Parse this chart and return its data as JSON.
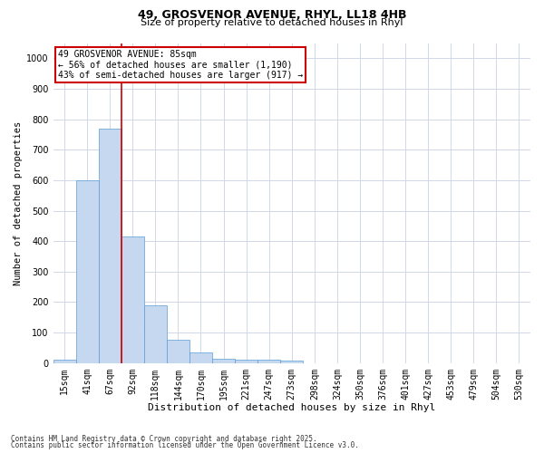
{
  "title_line1": "49, GROSVENOR AVENUE, RHYL, LL18 4HB",
  "title_line2": "Size of property relative to detached houses in Rhyl",
  "xlabel": "Distribution of detached houses by size in Rhyl",
  "ylabel": "Number of detached properties",
  "categories": [
    "15sqm",
    "41sqm",
    "67sqm",
    "92sqm",
    "118sqm",
    "144sqm",
    "170sqm",
    "195sqm",
    "221sqm",
    "247sqm",
    "273sqm",
    "298sqm",
    "324sqm",
    "350sqm",
    "376sqm",
    "401sqm",
    "427sqm",
    "453sqm",
    "479sqm",
    "504sqm",
    "530sqm"
  ],
  "values": [
    10,
    600,
    770,
    415,
    190,
    75,
    35,
    15,
    10,
    12,
    7,
    0,
    0,
    0,
    0,
    0,
    0,
    0,
    0,
    0,
    0
  ],
  "bar_color": "#c5d8f0",
  "bar_edge_color": "#5b9bd5",
  "grid_color": "#d0d8e8",
  "background_color": "#ffffff",
  "annotation_text": "49 GROSVENOR AVENUE: 85sqm\n← 56% of detached houses are smaller (1,190)\n43% of semi-detached houses are larger (917) →",
  "annotation_box_color": "#ffffff",
  "annotation_box_edge": "#cc0000",
  "vline_color": "#cc0000",
  "vline_x": 2.5,
  "ylim": [
    0,
    1050
  ],
  "yticks": [
    0,
    100,
    200,
    300,
    400,
    500,
    600,
    700,
    800,
    900,
    1000
  ],
  "footnote1": "Contains HM Land Registry data © Crown copyright and database right 2025.",
  "footnote2": "Contains public sector information licensed under the Open Government Licence v3.0.",
  "title_fontsize": 9,
  "subtitle_fontsize": 8,
  "tick_fontsize": 7,
  "ylabel_fontsize": 7.5,
  "xlabel_fontsize": 8,
  "annot_fontsize": 7,
  "footnote_fontsize": 5.5
}
